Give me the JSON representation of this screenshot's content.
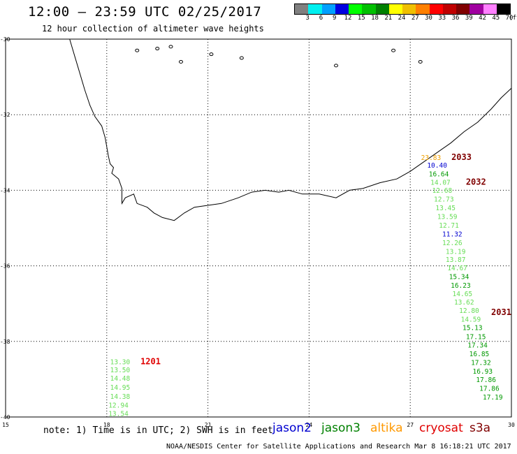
{
  "header": {
    "title": "12:00 – 23:59 UTC 02/25/2017",
    "subtitle": "12 hour collection of altimeter wave heights"
  },
  "colorbar": {
    "colors": [
      "#808080",
      "#00f0f0",
      "#00a0ff",
      "#0000e0",
      "#00ff00",
      "#00c000",
      "#008000",
      "#ffff00",
      "#f0c000",
      "#ff8000",
      "#ff0000",
      "#c00000",
      "#800000",
      "#a000a0",
      "#ff80ff",
      "#000000"
    ],
    "labels": [
      "3",
      "6",
      "9",
      "12",
      "15",
      "18",
      "21",
      "24",
      "27",
      "30",
      "33",
      "36",
      "39",
      "42",
      "45",
      "70"
    ],
    "unit": "(ft)"
  },
  "axes": {
    "lat_labels": [
      "-30",
      "-32",
      "-34",
      "-36",
      "-38",
      "-40"
    ],
    "lon_labels": [
      "15",
      "18",
      "21",
      "24",
      "27",
      "30"
    ]
  },
  "note": "note:  1) Time is in UTC;  2) SWH is in feet",
  "legend": [
    {
      "name": "jason2",
      "color": "#0000d0"
    },
    {
      "name": "jason3",
      "color": "#008000"
    },
    {
      "name": "altika",
      "color": "#ff9900"
    },
    {
      "name": "cryosat",
      "color": "#e00000"
    },
    {
      "name": "s3a",
      "color": "#800000"
    }
  ],
  "footer": "NOAA/NESDIS Center for Satellite Applications and Research   Mar  8 16:18:21 UTC 2017",
  "tracks": [
    {
      "satellite": "cryosat",
      "time": "1201",
      "time_color": "#e00000",
      "time_lon": 19.0,
      "time_lat": -38.6,
      "points": [
        {
          "lon": 18.1,
          "lat": -38.6,
          "swh": "13.30",
          "color": "#66dd55"
        },
        {
          "lon": 18.1,
          "lat": -38.82,
          "swh": "13.50",
          "color": "#66dd55"
        },
        {
          "lon": 18.1,
          "lat": -39.04,
          "swh": "14.48",
          "color": "#66dd55"
        },
        {
          "lon": 18.1,
          "lat": -39.28,
          "swh": "14.95",
          "color": "#66dd55"
        },
        {
          "lon": 18.1,
          "lat": -39.52,
          "swh": "14.38",
          "color": "#66dd55"
        },
        {
          "lon": 18.05,
          "lat": -39.75,
          "swh": "12.94",
          "color": "#66dd55"
        },
        {
          "lon": 18.05,
          "lat": -39.97,
          "swh": "13.54",
          "color": "#66dd55"
        }
      ]
    },
    {
      "satellite": "s3a",
      "time": "2033",
      "time_color": "#800000",
      "time_lon": 28.22,
      "time_lat": -33.2,
      "points": [
        {
          "lon": 27.32,
          "lat": -33.2,
          "swh": "23.83",
          "color": "#f0a000"
        },
        {
          "lon": 27.5,
          "lat": -33.4,
          "swh": "10.40",
          "color": "#0000d0"
        },
        {
          "lon": 27.55,
          "lat": -33.63,
          "swh": "16.64",
          "color": "#009900"
        }
      ]
    },
    {
      "satellite": "s3a",
      "time": "2032",
      "time_color": "#800000",
      "time_lon": 28.65,
      "time_lat": -33.85,
      "points": [
        {
          "lon": 27.6,
          "lat": -33.85,
          "swh": "14.07",
          "color": "#66dd55"
        },
        {
          "lon": 27.65,
          "lat": -34.07,
          "swh": "12.68",
          "color": "#66dd55"
        },
        {
          "lon": 27.7,
          "lat": -34.3,
          "swh": "12.73",
          "color": "#66dd55"
        },
        {
          "lon": 27.75,
          "lat": -34.53,
          "swh": "13.45",
          "color": "#66dd55"
        },
        {
          "lon": 27.8,
          "lat": -34.76,
          "swh": "13.59",
          "color": "#66dd55"
        },
        {
          "lon": 27.85,
          "lat": -34.99,
          "swh": "12.71",
          "color": "#66dd55"
        },
        {
          "lon": 27.95,
          "lat": -35.22,
          "swh": "11.32",
          "color": "#0000d0"
        },
        {
          "lon": 27.95,
          "lat": -35.45,
          "swh": "12.26",
          "color": "#66dd55"
        },
        {
          "lon": 28.05,
          "lat": -35.68,
          "swh": "13.19",
          "color": "#66dd55"
        },
        {
          "lon": 28.05,
          "lat": -35.9,
          "swh": "13.87",
          "color": "#66dd55"
        },
        {
          "lon": 28.1,
          "lat": -36.12,
          "swh": "14.67",
          "color": "#66dd55"
        },
        {
          "lon": 28.15,
          "lat": -36.35,
          "swh": "15.34",
          "color": "#009900"
        },
        {
          "lon": 28.2,
          "lat": -36.58,
          "swh": "16.23",
          "color": "#009900"
        },
        {
          "lon": 28.25,
          "lat": -36.8,
          "swh": "14.65",
          "color": "#66dd55"
        },
        {
          "lon": 28.3,
          "lat": -37.02,
          "swh": "13.62",
          "color": "#66dd55"
        },
        {
          "lon": 28.45,
          "lat": -37.25,
          "swh": "12.80",
          "color": "#66dd55"
        },
        {
          "lon": 28.5,
          "lat": -37.48,
          "swh": "14.59",
          "color": "#66dd55"
        }
      ]
    },
    {
      "satellite": "s3a",
      "time": "2031",
      "time_color": "#800000",
      "time_lon": 29.4,
      "time_lat": -37.3,
      "points": [
        {
          "lon": 28.55,
          "lat": -37.7,
          "swh": "15.13",
          "color": "#009900"
        },
        {
          "lon": 28.65,
          "lat": -37.94,
          "swh": "17.15",
          "color": "#009900"
        },
        {
          "lon": 28.7,
          "lat": -38.16,
          "swh": "17.34",
          "color": "#009900"
        },
        {
          "lon": 28.75,
          "lat": -38.39,
          "swh": "16.85",
          "color": "#009900"
        },
        {
          "lon": 28.8,
          "lat": -38.62,
          "swh": "17.32",
          "color": "#009900"
        },
        {
          "lon": 28.85,
          "lat": -38.85,
          "swh": "16.93",
          "color": "#009900"
        },
        {
          "lon": 28.95,
          "lat": -39.08,
          "swh": "17.86",
          "color": "#009900"
        },
        {
          "lon": 29.05,
          "lat": -39.31,
          "swh": "17.86",
          "color": "#009900"
        },
        {
          "lon": 29.15,
          "lat": -39.54,
          "swh": "17.19",
          "color": "#009900"
        }
      ]
    }
  ],
  "coastline": [
    [
      16.9,
      -30.0
    ],
    [
      17.05,
      -30.45
    ],
    [
      17.2,
      -30.9
    ],
    [
      17.35,
      -31.35
    ],
    [
      17.5,
      -31.75
    ],
    [
      17.65,
      -32.05
    ],
    [
      17.85,
      -32.3
    ],
    [
      17.95,
      -32.6
    ],
    [
      18.0,
      -32.85
    ],
    [
      18.05,
      -33.1
    ],
    [
      18.1,
      -33.3
    ],
    [
      18.2,
      -33.4
    ],
    [
      18.15,
      -33.55
    ],
    [
      18.35,
      -33.7
    ],
    [
      18.45,
      -33.95
    ],
    [
      18.45,
      -34.35
    ],
    [
      18.55,
      -34.2
    ],
    [
      18.8,
      -34.1
    ],
    [
      18.9,
      -34.35
    ],
    [
      19.2,
      -34.45
    ],
    [
      19.4,
      -34.6
    ],
    [
      19.65,
      -34.72
    ],
    [
      20.0,
      -34.8
    ],
    [
      20.3,
      -34.6
    ],
    [
      20.6,
      -34.45
    ],
    [
      21.0,
      -34.4
    ],
    [
      21.4,
      -34.35
    ],
    [
      21.9,
      -34.2
    ],
    [
      22.3,
      -34.05
    ],
    [
      22.7,
      -34.0
    ],
    [
      23.1,
      -34.05
    ],
    [
      23.4,
      -34.0
    ],
    [
      23.8,
      -34.1
    ],
    [
      24.3,
      -34.1
    ],
    [
      24.8,
      -34.2
    ],
    [
      25.2,
      -34.0
    ],
    [
      25.6,
      -33.95
    ],
    [
      26.1,
      -33.8
    ],
    [
      26.6,
      -33.7
    ],
    [
      27.0,
      -33.5
    ],
    [
      27.4,
      -33.25
    ],
    [
      27.8,
      -33.0
    ],
    [
      28.2,
      -32.75
    ],
    [
      28.6,
      -32.45
    ],
    [
      29.0,
      -32.2
    ],
    [
      29.4,
      -31.85
    ],
    [
      29.7,
      -31.55
    ],
    [
      30.0,
      -31.3
    ]
  ]
}
